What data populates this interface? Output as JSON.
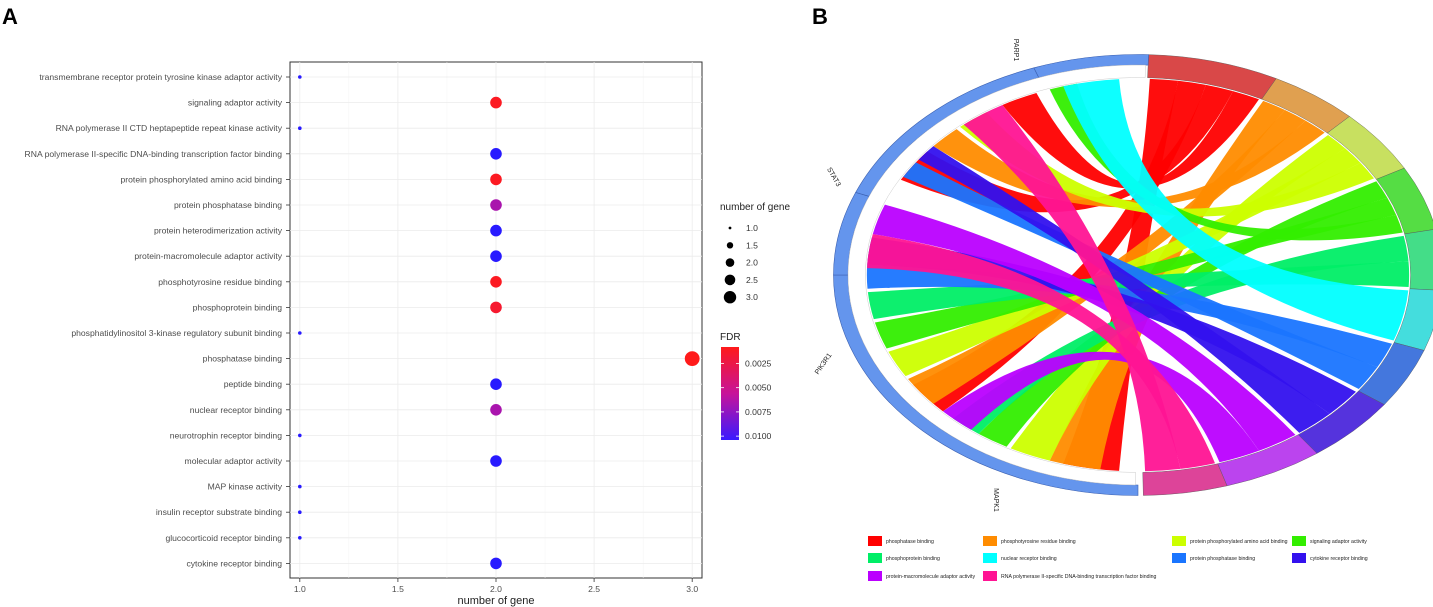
{
  "chart_data": [
    {
      "panel": "A",
      "type": "scatter",
      "title": "",
      "xlabel": "number of gene",
      "ylabel": "",
      "xlim": [
        0.95,
        3.05
      ],
      "xticks": [
        "1.0",
        "1.5",
        "2.0",
        "2.5",
        "3.0"
      ],
      "xtick_values": [
        1.0,
        1.5,
        2.0,
        2.5,
        3.0
      ],
      "points": [
        {
          "term": "transmembrane receptor protein tyrosine kinase adaptor activity",
          "count": 1,
          "fdr": 0.0104
        },
        {
          "term": "signaling adaptor activity",
          "count": 2,
          "fdr": 0.0011
        },
        {
          "term": "RNA polymerase II CTD heptapeptide repeat kinase activity",
          "count": 1,
          "fdr": 0.0104
        },
        {
          "term": "RNA polymerase II-specific DNA-binding transcription factor binding",
          "count": 2,
          "fdr": 0.0104
        },
        {
          "term": "protein phosphorylated amino acid binding",
          "count": 2,
          "fdr": 0.0011
        },
        {
          "term": "protein phosphatase binding",
          "count": 2,
          "fdr": 0.0065
        },
        {
          "term": "protein heterodimerization activity",
          "count": 2,
          "fdr": 0.0104
        },
        {
          "term": "protein-macromolecule adaptor activity",
          "count": 2,
          "fdr": 0.0104
        },
        {
          "term": "phosphotyrosine residue binding",
          "count": 2,
          "fdr": 0.0011
        },
        {
          "term": "phosphoprotein binding",
          "count": 2,
          "fdr": 0.0016
        },
        {
          "term": "phosphatidylinositol 3-kinase regulatory subunit binding",
          "count": 1,
          "fdr": 0.0104
        },
        {
          "term": "phosphatase binding",
          "count": 3,
          "fdr": 0.0008
        },
        {
          "term": "peptide binding",
          "count": 2,
          "fdr": 0.0104
        },
        {
          "term": "nuclear receptor binding",
          "count": 2,
          "fdr": 0.0065
        },
        {
          "term": "neurotrophin receptor binding",
          "count": 1,
          "fdr": 0.0104
        },
        {
          "term": "molecular adaptor activity",
          "count": 2,
          "fdr": 0.0104
        },
        {
          "term": "MAP kinase activity",
          "count": 1,
          "fdr": 0.0104
        },
        {
          "term": "insulin receptor substrate binding",
          "count": 1,
          "fdr": 0.0104
        },
        {
          "term": "glucocorticoid receptor binding",
          "count": 1,
          "fdr": 0.0104
        },
        {
          "term": "cytokine receptor binding",
          "count": 2,
          "fdr": 0.0104
        }
      ],
      "size_legend": {
        "title": "number of gene",
        "values": [
          1.0,
          1.5,
          2.0,
          2.5,
          3.0
        ],
        "labels": [
          "1.0",
          "1.5",
          "2.0",
          "2.5",
          "3.0"
        ]
      },
      "color_legend": {
        "title": "FDR",
        "min": 0.0008,
        "max": 0.0104,
        "ticks": [
          0.0025,
          0.005,
          0.0075,
          0.01
        ],
        "labels": [
          "0.0025",
          "0.0050",
          "0.0075",
          "0.0100"
        ],
        "low_color": "#ff1a1a",
        "high_color": "#1a1aff"
      }
    },
    {
      "panel": "B",
      "type": "chord",
      "genes": [
        "PARP1",
        "STAT3",
        "PIK3R1",
        "MAPK1"
      ],
      "terms": [
        {
          "name": "phosphatase binding",
          "color": "#ff0000"
        },
        {
          "name": "phosphotyrosine residue binding",
          "color": "#ff8c00"
        },
        {
          "name": "protein phosphorylated amino acid binding",
          "color": "#ccff00"
        },
        {
          "name": "signaling adaptor activity",
          "color": "#33ee00"
        },
        {
          "name": "phosphoprotein binding",
          "color": "#00ee66"
        },
        {
          "name": "nuclear receptor binding",
          "color": "#00ffff"
        },
        {
          "name": "protein phosphatase binding",
          "color": "#1a75ff"
        },
        {
          "name": "cytokine receptor binding",
          "color": "#3311ee"
        },
        {
          "name": "protein-macromolecule adaptor activity",
          "color": "#bb00ff"
        },
        {
          "name": "RNA polymerase II-specific DNA-binding transcription factor binding",
          "color": "#ff1493"
        }
      ],
      "gene_arc_color": "#6495ed"
    }
  ],
  "panels": {
    "a_label": "A",
    "b_label": "B"
  }
}
